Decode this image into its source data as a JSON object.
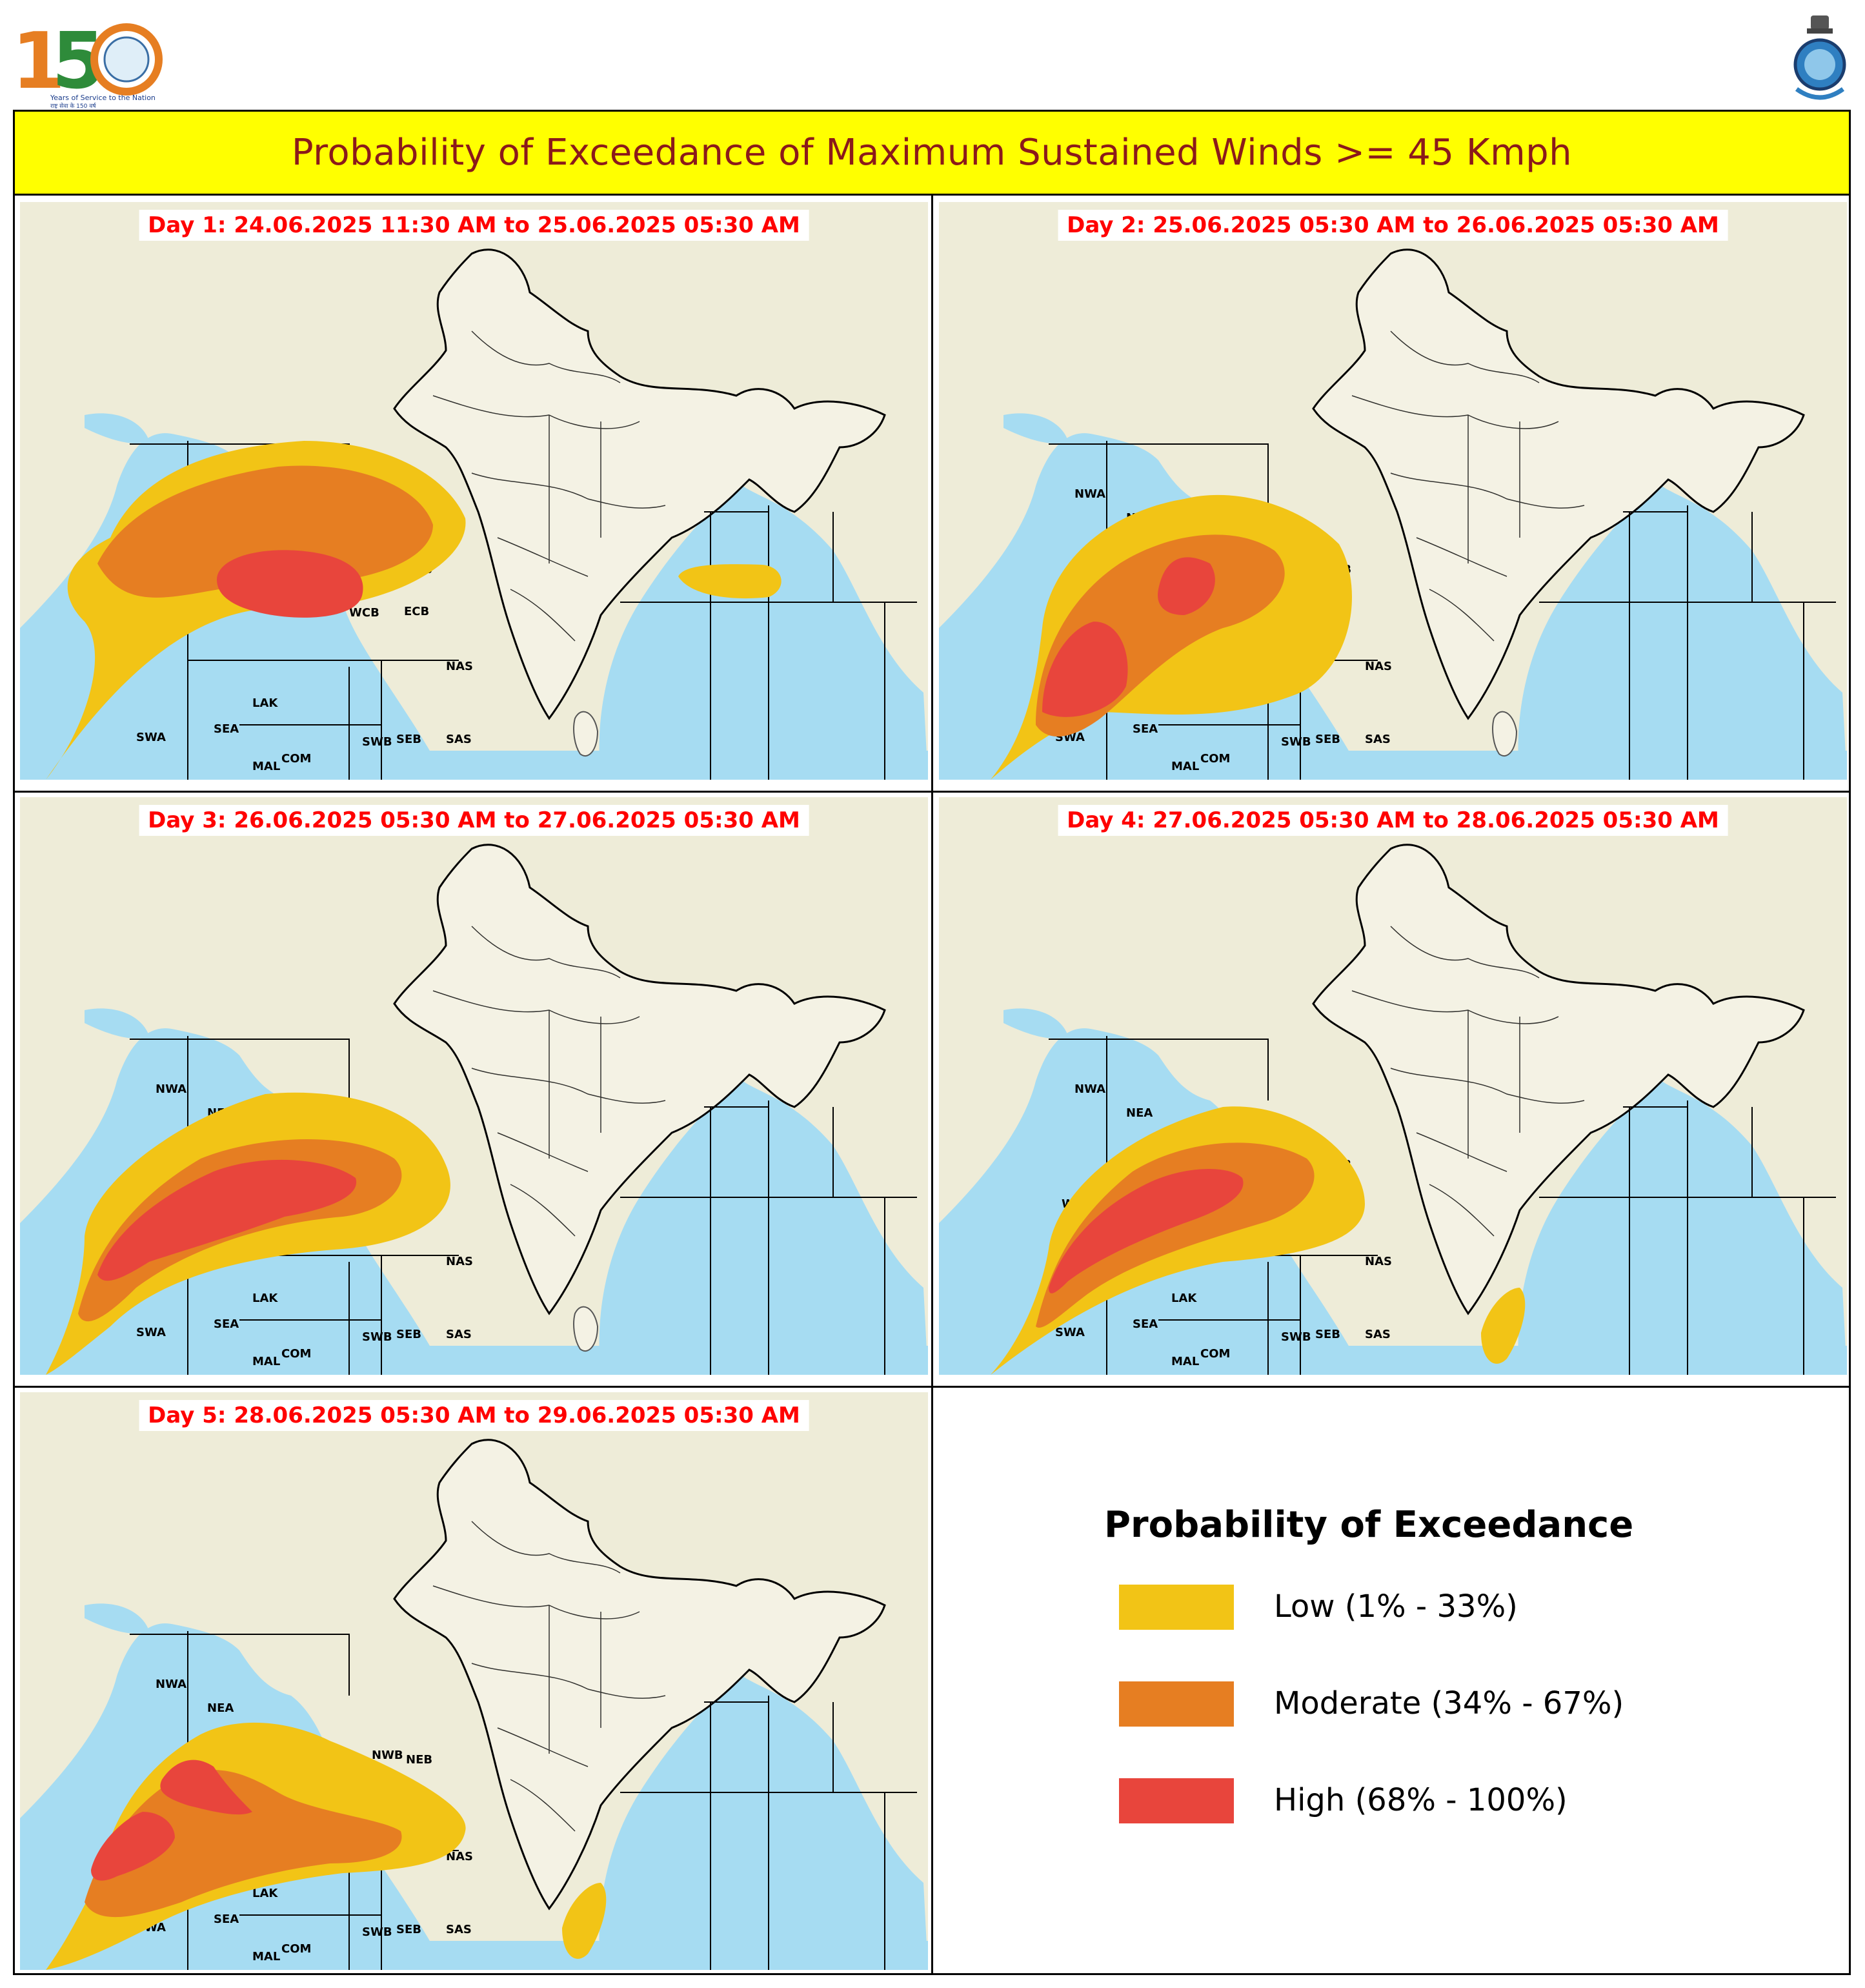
{
  "title": "Probability of Exceedance of Maximum Sustained Winds >= 45 Kmph",
  "logo": {
    "big_number": "150",
    "years": "1875 · 2025",
    "tagline": "Years of Service to the Nation",
    "hindi": "राष्ट्र सेवा के 150 वर्ष"
  },
  "colors": {
    "low": "#f2c416",
    "moderate": "#e67e22",
    "high": "#e8453c",
    "title_bg": "#ffff00",
    "title_fg": "#8b1a1a",
    "day_label": "#ff0000",
    "sea": "#a6dcf2",
    "land": "#eeecd8"
  },
  "sea_labels": [
    "NWA",
    "NEA",
    "ECA",
    "WCA",
    "SWA",
    "SEA",
    "LAK",
    "MAL",
    "COM",
    "NWB",
    "NEB",
    "WCB",
    "ECB",
    "SWB",
    "SEB",
    "NAS",
    "SAS"
  ],
  "panels": [
    {
      "label": "Day 1: 24.06.2025 11:30 AM to 25.06.2025 05:30 AM",
      "zones": [
        "low",
        "moderate",
        "high"
      ]
    },
    {
      "label": "Day 2: 25.06.2025 05:30 AM to 26.06.2025 05:30 AM",
      "zones": [
        "low",
        "moderate",
        "high"
      ]
    },
    {
      "label": "Day 3: 26.06.2025 05:30 AM to 27.06.2025 05:30 AM",
      "zones": [
        "low",
        "moderate",
        "high"
      ]
    },
    {
      "label": "Day 4: 27.06.2025 05:30 AM to 28.06.2025 05:30 AM",
      "zones": [
        "low",
        "moderate",
        "high"
      ]
    },
    {
      "label": "Day 5: 28.06.2025 05:30 AM to 29.06.2025 05:30 AM",
      "zones": [
        "low",
        "moderate",
        "high"
      ]
    }
  ],
  "legend": {
    "title": "Probability of Exceedance",
    "items": [
      {
        "label": "Low (1% - 33%)",
        "color": "#f2c416"
      },
      {
        "label": "Moderate (34% - 67%)",
        "color": "#e67e22"
      },
      {
        "label": "High (68% - 100%)",
        "color": "#e8453c"
      }
    ]
  }
}
